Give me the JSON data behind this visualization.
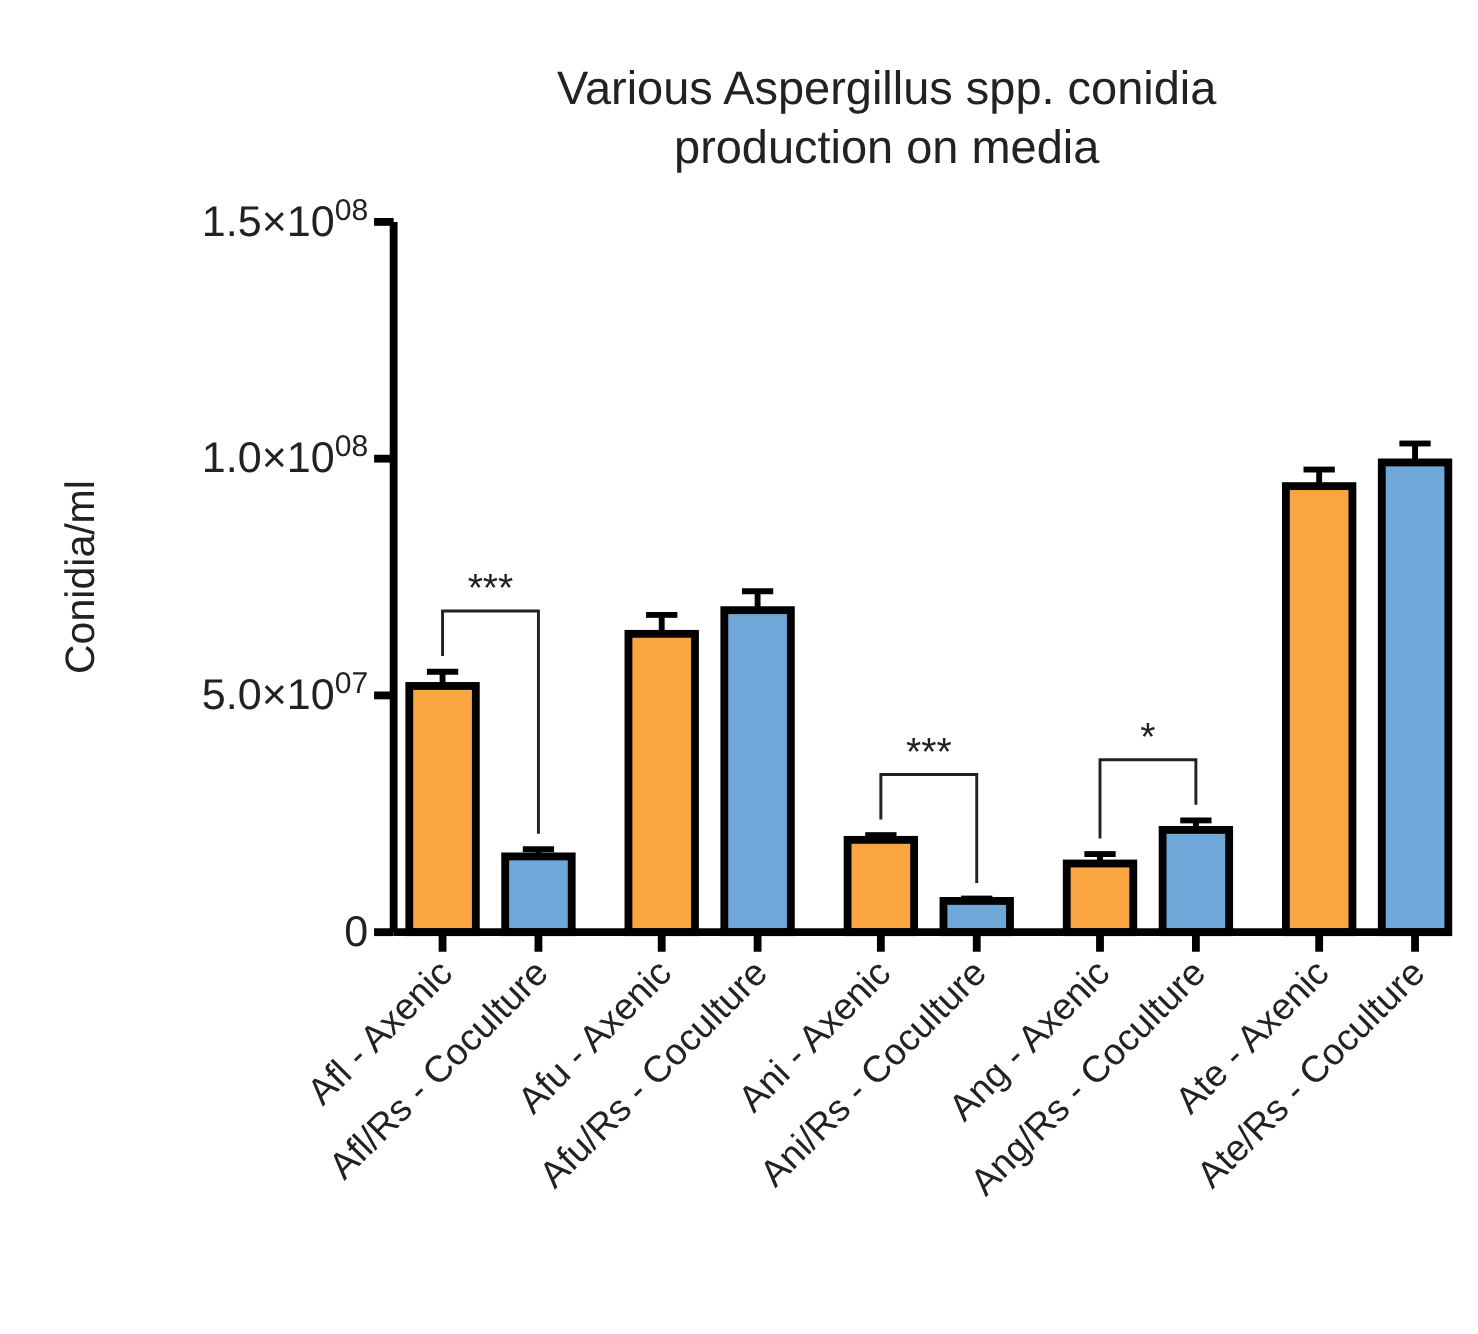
{
  "chart_data": {
    "type": "bar",
    "title": "Various Aspergillus spp. conidia production on media",
    "ylabel": "Conidia/ml",
    "categories": [
      "Afl - Axenic",
      "Afl/Rs - Coculture",
      "Afu - Axenic",
      "Afu/Rs - Coculture",
      "Ani - Axenic",
      "Ani/Rs - Coculture",
      "Ang - Axenic",
      "Ang/Rs - Coculture",
      "Ate - Axenic",
      "Ate/Rs - Coculture"
    ],
    "values": [
      52000000,
      16000000,
      63000000,
      68000000,
      19500000,
      6600000,
      14500000,
      21600000,
      94200000,
      99200000
    ],
    "errors": [
      3000000,
      1500000,
      4000000,
      4000000,
      1000000,
      500000,
      2000000,
      2000000,
      3500000,
      4000000
    ],
    "colors": [
      "#f9a541",
      "#6fa8d8",
      "#f9a541",
      "#6fa8d8",
      "#f9a541",
      "#6fa8d8",
      "#f9a541",
      "#6fa8d8",
      "#f9a541",
      "#6fa8d8"
    ],
    "ylim": [
      0,
      150000000
    ],
    "yticks": [
      0,
      {
        "value": 50000000,
        "label": "5.0×10$^{07}$"
      },
      {
        "value": 100000000,
        "label": "1.0×10$^{08}$"
      },
      {
        "value": 150000000,
        "label": "1.5×10$^{08}$"
      }
    ],
    "annotations": [
      "***",
      "***",
      "*"
    ],
    "grid": false
  }
}
